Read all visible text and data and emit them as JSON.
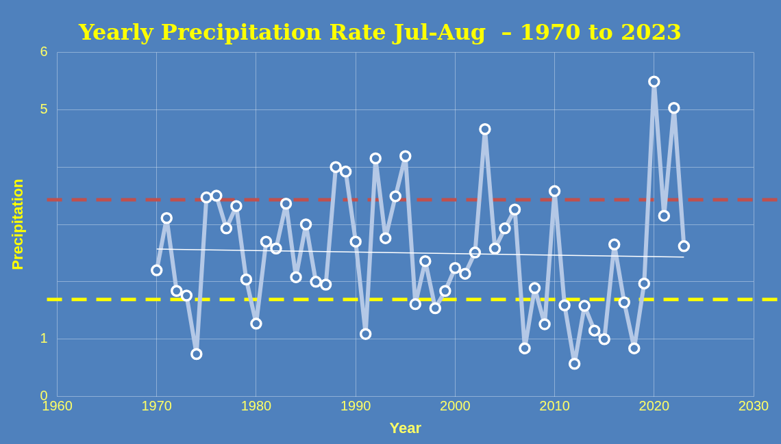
{
  "chart_data": {
    "type": "line",
    "title": "Yearly Precipitation Rate Jul-Aug  – 1970 to 2023",
    "xlabel": "Year",
    "ylabel": "Precipitation",
    "x": [
      1970,
      1971,
      1972,
      1973,
      1974,
      1975,
      1976,
      1977,
      1978,
      1979,
      1980,
      1981,
      1982,
      1983,
      1984,
      1985,
      1986,
      1987,
      1988,
      1989,
      1990,
      1991,
      1992,
      1993,
      1994,
      1995,
      1996,
      1997,
      1998,
      1999,
      2000,
      2001,
      2002,
      2003,
      2004,
      2005,
      2006,
      2007,
      2008,
      2009,
      2010,
      2011,
      2012,
      2013,
      2014,
      2015,
      2016,
      2017,
      2018,
      2019,
      2020,
      2021,
      2022,
      2023
    ],
    "series": [
      {
        "color": "#b4c8e6",
        "values": [
          2.2,
          3.11,
          1.84,
          1.76,
          0.74,
          3.47,
          3.5,
          2.93,
          3.32,
          2.04,
          1.27,
          2.7,
          2.58,
          3.36,
          2.08,
          3.0,
          2.0,
          1.95,
          4.0,
          3.92,
          2.7,
          1.09,
          4.15,
          2.76,
          3.49,
          4.19,
          1.61,
          2.36,
          1.54,
          1.84,
          2.24,
          2.14,
          2.51,
          4.66,
          2.58,
          2.93,
          3.26,
          0.84,
          1.89,
          1.26,
          3.58,
          1.59,
          0.57,
          1.58,
          1.15,
          1.0,
          2.65,
          1.64,
          0.84,
          1.97,
          5.49,
          3.15,
          5.03,
          2.62
        ]
      },
      {
        "type": "line",
        "x": [
          1970,
          2023
        ],
        "values": [
          2.57,
          2.43
        ],
        "color": "#ffffff",
        "marker": "none"
      }
    ],
    "xlim": [
      1960,
      2030
    ],
    "xticks": [
      1960,
      1970,
      1980,
      1990,
      2000,
      2010,
      2020,
      2030
    ],
    "ylim": [
      0,
      6
    ],
    "yticks": [
      0,
      1,
      {
        "value": 2,
        "label": null
      },
      {
        "value": 3,
        "label": null
      },
      {
        "value": 4,
        "label": null
      },
      5,
      6
    ],
    "grid": true,
    "marker": "circle",
    "ref_lines": [
      {
        "axis": "y",
        "value": 3.43,
        "color": "#c0504d",
        "line_style": "dashed"
      },
      {
        "axis": "y",
        "value": 1.69,
        "color": "#ffff00",
        "line_style": "dashed"
      }
    ]
  }
}
